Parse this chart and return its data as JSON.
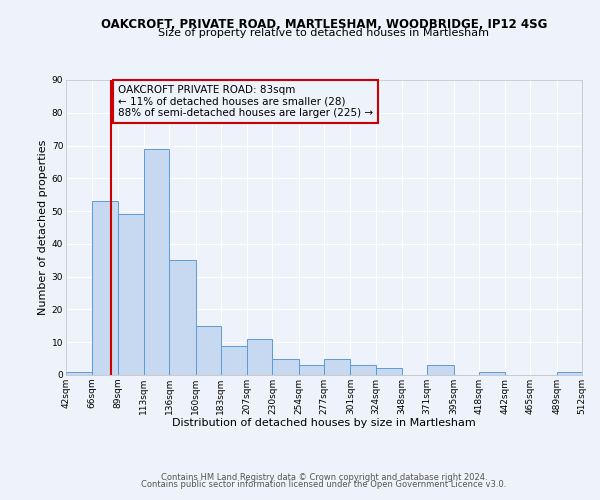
{
  "title": "OAKCROFT, PRIVATE ROAD, MARTLESHAM, WOODBRIDGE, IP12 4SG",
  "subtitle": "Size of property relative to detached houses in Martlesham",
  "xlabel": "Distribution of detached houses by size in Martlesham",
  "ylabel": "Number of detached properties",
  "bin_edges": [
    42,
    66,
    89,
    113,
    136,
    160,
    183,
    207,
    230,
    254,
    277,
    301,
    324,
    348,
    371,
    395,
    418,
    442,
    465,
    489,
    512
  ],
  "counts": [
    1,
    53,
    49,
    69,
    35,
    15,
    9,
    11,
    5,
    3,
    5,
    3,
    2,
    0,
    3,
    0,
    1,
    0,
    0,
    1
  ],
  "bar_facecolor": "#c7d9f0",
  "bar_edgecolor": "#5b9bd5",
  "vline_x": 83,
  "vline_color": "#cc0000",
  "annotation_title": "OAKCROFT PRIVATE ROAD: 83sqm",
  "annotation_line1": "← 11% of detached houses are smaller (28)",
  "annotation_line2": "88% of semi-detached houses are larger (225) →",
  "annotation_box_color": "#cc0000",
  "ylim": [
    0,
    90
  ],
  "yticks": [
    0,
    10,
    20,
    30,
    40,
    50,
    60,
    70,
    80,
    90
  ],
  "tick_labels": [
    "42sqm",
    "66sqm",
    "89sqm",
    "113sqm",
    "136sqm",
    "160sqm",
    "183sqm",
    "207sqm",
    "230sqm",
    "254sqm",
    "277sqm",
    "301sqm",
    "324sqm",
    "348sqm",
    "371sqm",
    "395sqm",
    "418sqm",
    "442sqm",
    "465sqm",
    "489sqm",
    "512sqm"
  ],
  "footer1": "Contains HM Land Registry data © Crown copyright and database right 2024.",
  "footer2": "Contains public sector information licensed under the Open Government Licence v3.0.",
  "bg_color": "#eef2fb",
  "grid_color": "#ffffff",
  "title_fontsize": 8.5,
  "subtitle_fontsize": 8,
  "axis_label_fontsize": 8,
  "tick_fontsize": 6.5,
  "footer_fontsize": 6,
  "annot_fontsize": 7.5
}
